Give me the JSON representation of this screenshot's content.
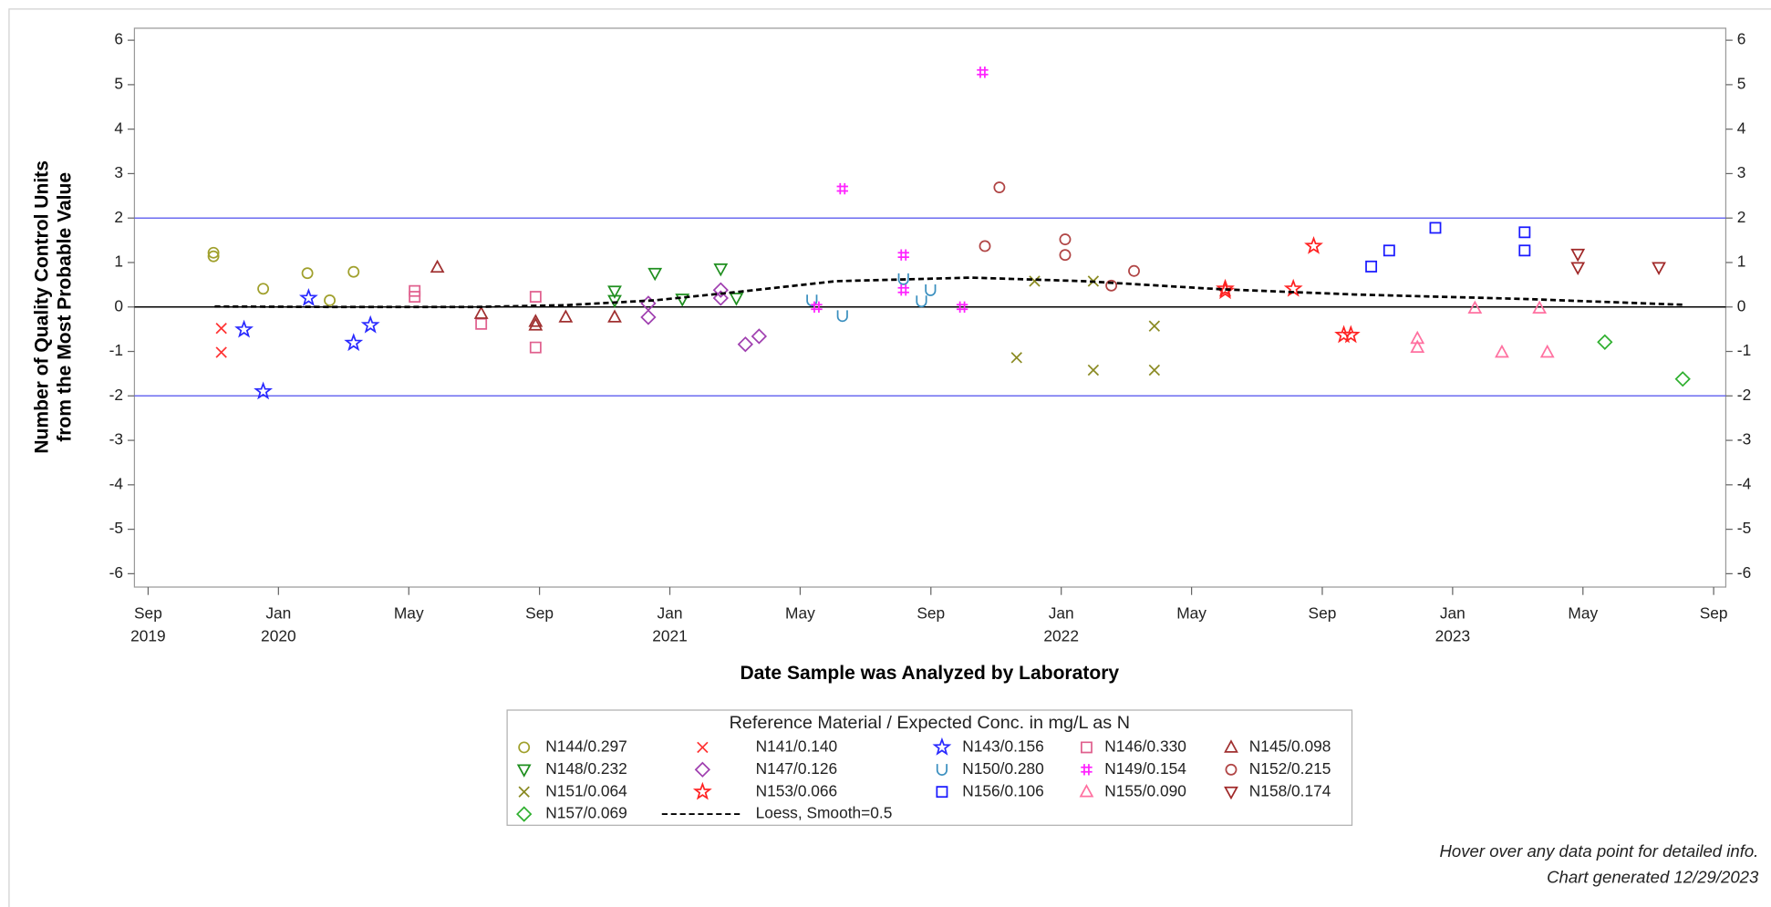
{
  "chart_data": {
    "type": "scatter",
    "xlabel": "Date Sample was Analyzed by Laboratory",
    "ylabel": [
      "Number of Quality Control Units",
      "from the Most Probable Value"
    ],
    "legend_title": "Reference Material / Expected Conc. in mg/L as N",
    "annotations": [
      "Hover over any data point for detailed info.",
      "Chart generated 12/29/2023"
    ],
    "xlim": [
      2019.632,
      2023.698
    ],
    "ylim": [
      -6.3,
      6.27
    ],
    "xticks": [
      {
        "value": 2019.667,
        "label": "Sep 2019"
      },
      {
        "value": 2020.0,
        "label": "Jan 2020"
      },
      {
        "value": 2020.333,
        "label": "May"
      },
      {
        "value": 2020.667,
        "label": "Sep"
      },
      {
        "value": 2021.0,
        "label": "Jan 2021"
      },
      {
        "value": 2021.333,
        "label": "May"
      },
      {
        "value": 2021.667,
        "label": "Sep"
      },
      {
        "value": 2022.0,
        "label": "Jan 2022"
      },
      {
        "value": 2022.333,
        "label": "May"
      },
      {
        "value": 2022.667,
        "label": "Sep"
      },
      {
        "value": 2023.0,
        "label": "Jan 2023"
      },
      {
        "value": 2023.333,
        "label": "May"
      },
      {
        "value": 2023.667,
        "label": "Sep"
      }
    ],
    "yticks": [
      -6,
      -5,
      -4,
      -3,
      -2,
      -1,
      0,
      1,
      2,
      3,
      4,
      5,
      6
    ],
    "reference_lines": [
      {
        "value": 2,
        "color": "#6b6bf0"
      },
      {
        "value": -2,
        "color": "#6b6bf0"
      },
      {
        "value": 0,
        "color": "#000000"
      }
    ],
    "series": [
      {
        "name": "N144/0.297",
        "color": "#a0a02c",
        "marker": "circle",
        "x": [
          2019.834,
          2019.834,
          2019.961,
          2020.074,
          2020.131,
          2020.192
        ],
        "values": [
          1.22,
          1.14,
          0.41,
          0.76,
          0.15,
          0.79
        ]
      },
      {
        "name": "N141/0.140",
        "color": "#ff3333",
        "marker": "x",
        "x": [
          2019.854,
          2019.854
        ],
        "values": [
          -0.48,
          -1.02
        ]
      },
      {
        "name": "N143/0.156",
        "color": "#2a2aff",
        "marker": "star",
        "x": [
          2019.912,
          2019.961,
          2020.077,
          2020.192,
          2020.235
        ],
        "values": [
          -0.51,
          -1.9,
          0.2,
          -0.81,
          -0.41
        ]
      },
      {
        "name": "N146/0.330",
        "color": "#e0608e",
        "marker": "square",
        "x": [
          2020.348,
          2020.348,
          2020.518,
          2020.657,
          2020.657
        ],
        "values": [
          0.36,
          0.23,
          -0.38,
          0.23,
          -0.91
        ]
      },
      {
        "name": "N145/0.098",
        "color": "#a03030",
        "marker": "triangle",
        "x": [
          2020.406,
          2020.518,
          2020.657,
          2020.657,
          2020.734,
          2020.859
        ],
        "values": [
          0.89,
          -0.15,
          -0.33,
          -0.41,
          -0.23,
          -0.23
        ]
      },
      {
        "name": "N148/0.232",
        "color": "#1f8f1f",
        "marker": "down-triangle",
        "x": [
          2020.859,
          2020.859,
          2020.962,
          2021.032,
          2021.13,
          2021.17
        ],
        "values": [
          0.36,
          0.15,
          0.76,
          0.18,
          0.86,
          0.2
        ]
      },
      {
        "name": "N147/0.126",
        "color": "#a040b0",
        "marker": "diamond",
        "x": [
          2020.945,
          2020.945,
          2021.13,
          2021.13,
          2021.193,
          2021.228
        ],
        "values": [
          0.08,
          -0.23,
          0.38,
          0.2,
          -0.84,
          -0.66
        ]
      },
      {
        "name": "N150/0.280",
        "color": "#3a8fbf",
        "marker": "cup",
        "x": [
          2021.363,
          2021.441,
          2021.597,
          2021.643,
          2021.666
        ],
        "values": [
          0.15,
          -0.2,
          0.63,
          0.13,
          0.38
        ]
      },
      {
        "name": "N149/0.154",
        "color": "#ff22ff",
        "marker": "hash",
        "x": [
          2021.375,
          2021.441,
          2021.597,
          2021.597,
          2021.747,
          2021.799
        ],
        "values": [
          0,
          2.66,
          1.17,
          0.38,
          0,
          5.28
        ]
      },
      {
        "name": "N152/0.215",
        "color": "#b04444",
        "marker": "circle",
        "x": [
          2021.805,
          2021.842,
          2022.01,
          2022.01,
          2022.128,
          2022.186
        ],
        "values": [
          1.37,
          2.69,
          1.52,
          1.17,
          0.48,
          0.81
        ]
      },
      {
        "name": "N151/0.064",
        "color": "#8a8a22",
        "marker": "x",
        "x": [
          2021.886,
          2021.932,
          2022.082,
          2022.082,
          2022.238,
          2022.238
        ],
        "values": [
          -1.14,
          0.58,
          0.58,
          -1.42,
          -0.43,
          -1.42
        ]
      },
      {
        "name": "N153/0.066",
        "color": "#ff2222",
        "marker": "star",
        "x": [
          2022.419,
          2022.419,
          2022.593,
          2022.645,
          2022.722,
          2022.74
        ],
        "values": [
          0.41,
          0.36,
          0.41,
          1.37,
          -0.63,
          -0.63
        ]
      },
      {
        "name": "N156/0.106",
        "color": "#1a1aff",
        "marker": "square",
        "x": [
          2022.792,
          2022.838,
          2022.956,
          2023.184,
          2023.184
        ],
        "values": [
          0.91,
          1.27,
          1.78,
          1.68,
          1.27
        ]
      },
      {
        "name": "N155/0.090",
        "color": "#ff70a0",
        "marker": "triangle",
        "x": [
          2022.91,
          2022.91,
          2023.057,
          2023.126,
          2023.222,
          2023.242
        ],
        "values": [
          -0.71,
          -0.91,
          -0.03,
          -1.02,
          -0.03,
          -1.02
        ]
      },
      {
        "name": "N158/0.174",
        "color": "#a02828",
        "marker": "down-triangle",
        "x": [
          2023.32,
          2023.32,
          2023.527
        ],
        "values": [
          1.19,
          0.89,
          0.89
        ]
      },
      {
        "name": "N157/0.069",
        "color": "#30b030",
        "marker": "diamond",
        "x": [
          2023.389,
          2023.588
        ],
        "values": [
          -0.79,
          -1.62
        ]
      },
      {
        "name": "Loess, Smooth=0.5",
        "color": "#000000",
        "marker": "dashed-line",
        "x": [
          2019.837,
          2020.155,
          2020.501,
          2020.732,
          2020.962,
          2021.164,
          2021.424,
          2021.77,
          2022.059,
          2022.405,
          2022.751,
          2023.184,
          2023.588
        ],
        "values": [
          0.01,
          0,
          0,
          0.04,
          0.15,
          0.33,
          0.58,
          0.66,
          0.58,
          0.4,
          0.28,
          0.18,
          0.05
        ]
      }
    ]
  }
}
